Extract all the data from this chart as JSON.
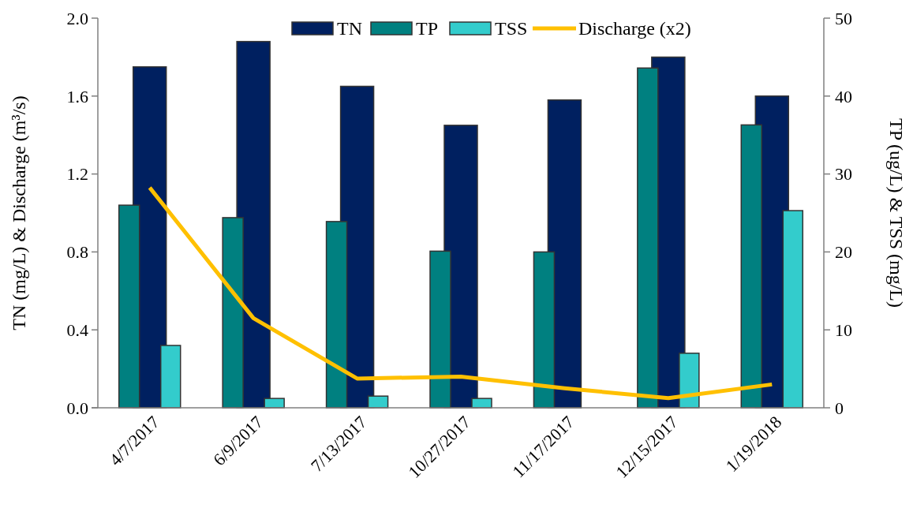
{
  "chart_data": {
    "type": "bar",
    "categories": [
      "4/7/2017",
      "6/9/2017",
      "7/13/2017",
      "10/27/2017",
      "11/17/2017",
      "12/15/2017",
      "1/19/2018"
    ],
    "ylabel": "TN (mg/L) & Discharge (m³/s)",
    "y2label": "TP (ug/L) & TSS (mg/L)",
    "ylim": [
      0,
      2
    ],
    "yticks": [
      {
        "value": 0,
        "label": "0.0"
      },
      {
        "value": 0.4,
        "label": "0.4"
      },
      {
        "value": 0.8,
        "label": "0.8"
      },
      {
        "value": 1.2,
        "label": "1.2"
      },
      {
        "value": 1.6,
        "label": "1.6"
      },
      {
        "value": 2,
        "label": "2.0"
      }
    ],
    "y2lim": [
      0,
      50
    ],
    "y2ticks": [
      0,
      10,
      20,
      30,
      40,
      50
    ],
    "grid": false,
    "legend": "top right",
    "series": [
      {
        "name": "TN",
        "color": "#002060",
        "values": [
          1.75,
          1.88,
          1.65,
          1.45,
          1.58,
          1.8,
          1.6
        ]
      },
      {
        "name": "TP",
        "axis": "y2",
        "color": "#008080",
        "values": [
          26,
          24.4,
          23.9,
          20.1,
          20,
          43.6,
          36.3
        ]
      },
      {
        "name": "TSS",
        "axis": "y2",
        "color": "#33cccc",
        "values": [
          8,
          1.2,
          1.5,
          1.2,
          null,
          7,
          25.3
        ]
      },
      {
        "name": "Discharge (x2)",
        "type": "line",
        "color": "#ffc000",
        "values": [
          1.13,
          0.46,
          0.15,
          0.16,
          0.1,
          0.05,
          0.12
        ]
      }
    ]
  }
}
